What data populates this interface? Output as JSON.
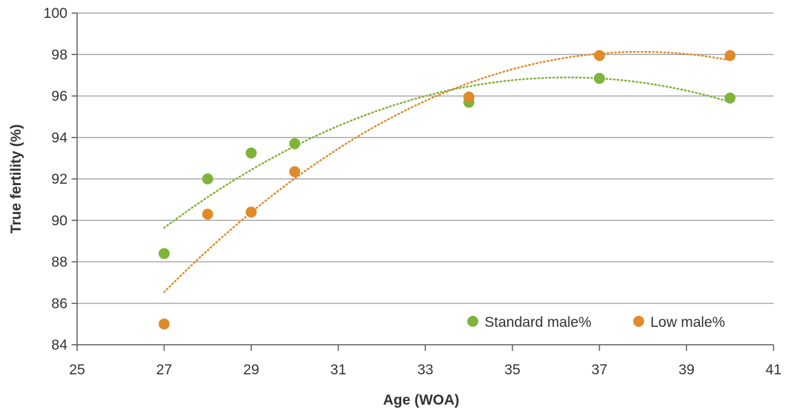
{
  "chart_data": {
    "type": "scatter",
    "title": "",
    "xlabel": "Age (WOA)",
    "ylabel": "True fertility (%)",
    "xlim": [
      25,
      41
    ],
    "ylim": [
      84,
      100
    ],
    "xticks": [
      "25",
      "27",
      "29",
      "31",
      "33",
      "35",
      "37",
      "39",
      "41"
    ],
    "yticks": [
      "84",
      "86",
      "88",
      "90",
      "92",
      "94",
      "96",
      "98",
      "100"
    ],
    "grid": "horizontal",
    "legend_position": "bottom-right",
    "series": [
      {
        "name": "Standard male%",
        "color": "#7fb33a",
        "x": [
          27,
          28,
          29,
          30,
          34,
          37,
          40
        ],
        "y": [
          88.4,
          92.0,
          93.25,
          93.7,
          95.7,
          96.85,
          95.9
        ],
        "trendline": "polynomial (order 2)",
        "trend_start": 89.6,
        "trend_end": 95.8
      },
      {
        "name": "Low male%",
        "color": "#e08b2a",
        "x": [
          27,
          28,
          29,
          30,
          34,
          37,
          40
        ],
        "y": [
          85.0,
          90.3,
          90.4,
          92.35,
          95.95,
          97.95,
          97.95
        ],
        "trendline": "polynomial (order 2)",
        "trend_start": 86.5,
        "trend_end": 97.7
      }
    ]
  }
}
